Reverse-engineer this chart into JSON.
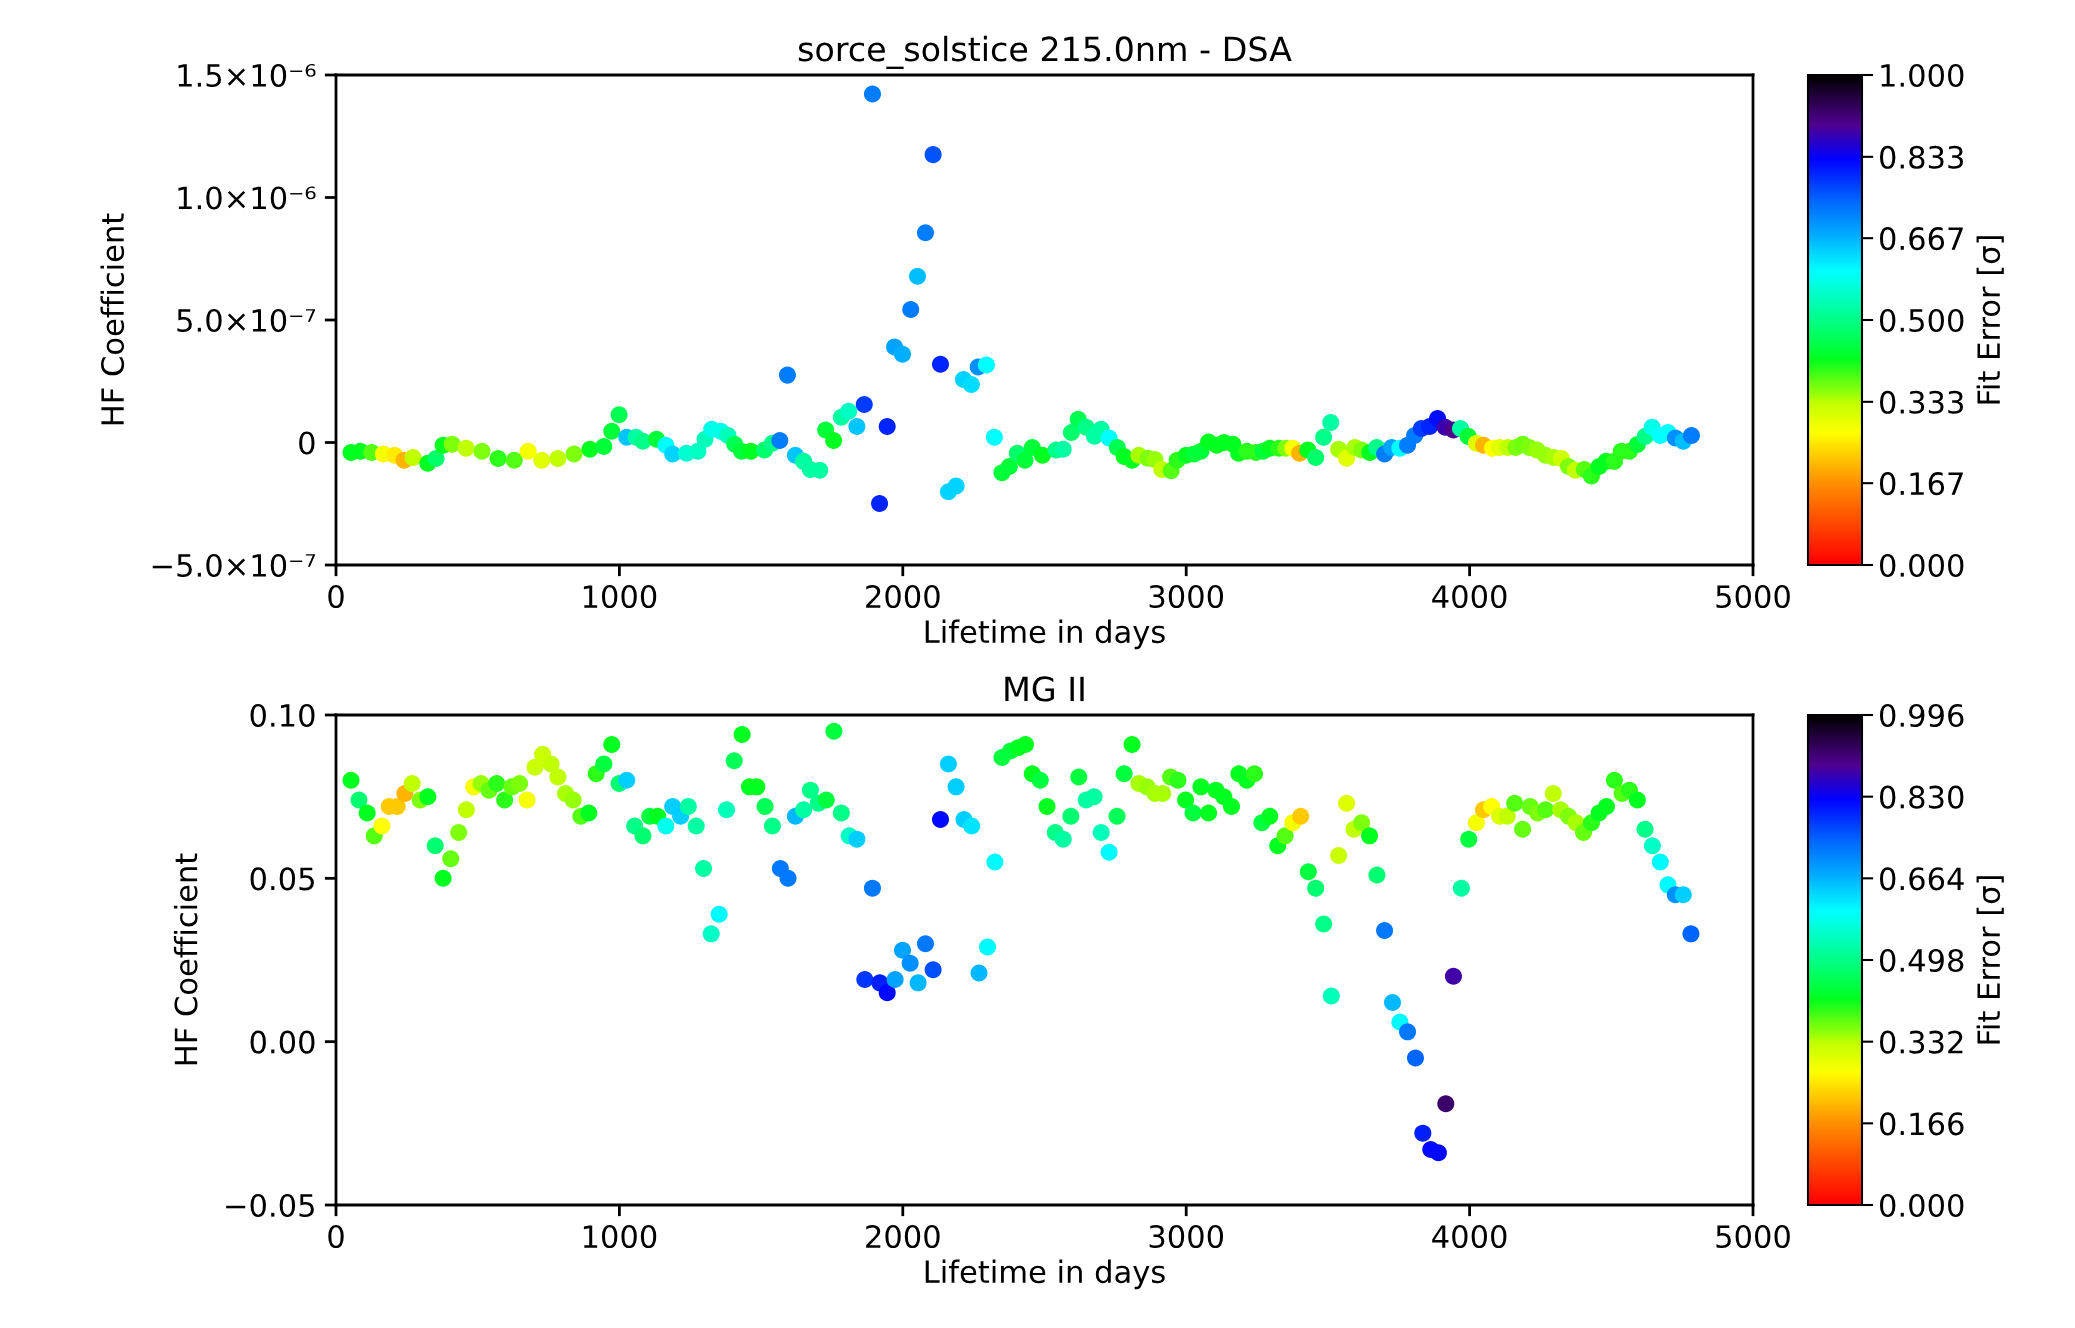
{
  "chart_data": [
    {
      "type": "scatter",
      "title": "sorce_solstice 215.0nm - DSA",
      "xlabel": "Lifetime in days",
      "ylabel": "HF Coefficient",
      "clabel": "Fit Error [σ]",
      "marker": "circle",
      "xlim": [
        0,
        5000
      ],
      "xticks": [
        0,
        1000,
        2000,
        3000,
        4000,
        5000
      ],
      "ylim": [
        -5e-07,
        1.5e-06
      ],
      "yticks": [
        {
          "value": -5e-07,
          "label": "−5.0×10⁻⁷"
        },
        0,
        {
          "value": 5e-07,
          "label": "5.0×10⁻⁷"
        },
        {
          "value": 1e-06,
          "label": "1.0×10⁻⁶"
        },
        {
          "value": 1.5e-06,
          "label": "1.5×10⁻⁶"
        }
      ],
      "clim": [
        0,
        1
      ],
      "cticks": [
        {
          "value": 0,
          "label": "0.000"
        },
        {
          "value": 0.167,
          "label": "0.167"
        },
        {
          "value": 0.333,
          "label": "0.333"
        },
        {
          "value": 0.5,
          "label": "0.500"
        },
        {
          "value": 0.667,
          "label": "0.667"
        },
        {
          "value": 0.833,
          "label": "0.833"
        },
        {
          "value": 1,
          "label": "1.000"
        }
      ],
      "x": [
        53,
        86,
        126,
        167,
        207,
        240,
        272,
        324,
        353,
        378,
        410,
        459,
        515,
        572,
        629,
        678,
        726,
        783,
        840,
        896,
        945,
        973,
        999,
        1026,
        1059,
        1083,
        1131,
        1164,
        1188,
        1237,
        1277,
        1302,
        1326,
        1358,
        1383,
        1407,
        1431,
        1464,
        1512,
        1540,
        1566,
        1593,
        1621,
        1650,
        1674,
        1707,
        1728,
        1756,
        1783,
        1809,
        1838,
        1864,
        1893,
        1918,
        1945,
        1971,
        1999,
        2028,
        2052,
        2080,
        2107,
        2133,
        2161,
        2188,
        2214,
        2242,
        2266,
        2295,
        2323,
        2350,
        2376,
        2404,
        2431,
        2457,
        2493,
        2541,
        2566,
        2595,
        2619,
        2647,
        2676,
        2700,
        2728,
        2757,
        2781,
        2809,
        2833,
        2865,
        2890,
        2914,
        2947,
        2968,
        3000,
        3028,
        3052,
        3079,
        3108,
        3133,
        3165,
        3185,
        3214,
        3246,
        3271,
        3295,
        3327,
        3352,
        3376,
        3400,
        3429,
        3457,
        3485,
        3510,
        3538,
        3566,
        3595,
        3619,
        3648,
        3672,
        3700,
        3725,
        3754,
        3781,
        3806,
        3830,
        3859,
        3887,
        3914,
        3943,
        3968,
        3995,
        4024,
        4049,
        4081,
        4106,
        4135,
        4163,
        4187,
        4211,
        4238,
        4268,
        4297,
        4324,
        4349,
        4373,
        4405,
        4430,
        4457,
        4482,
        4511,
        4535,
        4564,
        4592,
        4620,
        4644,
        4673,
        4700,
        4726,
        4754,
        4783
      ],
      "values": [
        -4.1e-08,
        -3.6e-08,
        -4.1e-08,
        -4.7e-08,
        -5.2e-08,
        -7.2e-08,
        -6.1e-08,
        -8.5e-08,
        -6.5e-08,
        -1.1e-08,
        -7e-09,
        -2.3e-08,
        -3.6e-08,
        -6.5e-08,
        -7.2e-08,
        -3.6e-08,
        -7.2e-08,
        -6.5e-08,
        -4.7e-08,
        -2.8e-08,
        -1.6e-08,
        4.6e-08,
        1.13e-07,
        2.1e-08,
        2.1e-08,
        5e-09,
        1.3e-08,
        -1.1e-08,
        -4.7e-08,
        -4.4e-08,
        -3.6e-08,
        1.3e-08,
        5.4e-08,
        4.6e-08,
        2.9e-08,
        -7e-09,
        -3.6e-08,
        -3.6e-08,
        -3.1e-08,
        -3e-09,
        8e-09,
        2.75e-07,
        -5.2e-08,
        -7.7e-08,
        -1.1e-07,
        -1.13e-07,
        5.1e-08,
        8e-09,
        1.03e-07,
        1.28e-07,
        6.5e-08,
        1.55e-07,
        1.422e-06,
        -2.49e-07,
        6.5e-08,
        3.9e-07,
        3.6e-07,
        5.43e-07,
        6.79e-07,
        8.56e-07,
        1.175e-06,
        3.19e-07,
        -2.01e-07,
        -1.78e-07,
        2.57e-07,
        2.37e-07,
        3.08e-07,
        3.16e-07,
        2.1e-08,
        -1.23e-07,
        -9.8e-08,
        -4.4e-08,
        -7.2e-08,
        -2e-08,
        -5.2e-08,
        -3.1e-08,
        -2.8e-08,
        4.1e-08,
        9.5e-08,
        6.2e-08,
        2.6e-08,
        5.4e-08,
        1.8e-08,
        -2e-08,
        -5.7e-08,
        -7.2e-08,
        -5.2e-08,
        -6.4e-08,
        -6.9e-08,
        -1.1e-07,
        -1.15e-07,
        -7.2e-08,
        -5.2e-08,
        -4.7e-08,
        -3.6e-08,
        2e-09,
        -1.1e-08,
        0.0,
        -7e-09,
        -4.4e-08,
        -3.6e-08,
        -4.1e-08,
        -3.6e-08,
        -2.3e-08,
        -2.3e-08,
        -2.3e-08,
        -2.3e-08,
        -4.4e-08,
        -3.1e-08,
        -6.1e-08,
        2.1e-08,
        8.2e-08,
        -2.8e-08,
        -6.4e-08,
        -2e-08,
        -3.1e-08,
        -4.1e-08,
        -2e-08,
        -4.7e-08,
        -2e-08,
        -2.3e-08,
        -1.1e-08,
        2.9e-08,
        5.7e-08,
        6.5e-08,
        9.8e-08,
        6.2e-08,
        5.1e-08,
        5.7e-08,
        2.5e-08,
        -3e-09,
        -1.1e-08,
        -2.3e-08,
        -2e-08,
        -2e-08,
        -2e-08,
        -7e-09,
        -2e-08,
        -3.1e-08,
        -5.2e-08,
        -6.1e-08,
        -6.5e-08,
        -9.8e-08,
        -1.13e-07,
        -1.1e-07,
        -1.37e-07,
        -9.8e-08,
        -7.7e-08,
        -7.7e-08,
        -3.6e-08,
        -3.6e-08,
        -8e-09,
        2.5e-08,
        6.2e-08,
        2.9e-08,
        4.1e-08,
        1.8e-08,
        5e-09,
        2.9e-08
      ],
      "cvalues": [
        0.42,
        0.42,
        0.38,
        0.28,
        0.25,
        0.2,
        0.33,
        0.42,
        0.48,
        0.42,
        0.36,
        0.33,
        0.36,
        0.4,
        0.38,
        0.28,
        0.3,
        0.33,
        0.36,
        0.42,
        0.44,
        0.44,
        0.46,
        0.65,
        0.52,
        0.5,
        0.44,
        0.6,
        0.64,
        0.56,
        0.55,
        0.54,
        0.58,
        0.58,
        0.54,
        0.46,
        0.44,
        0.42,
        0.48,
        0.5,
        0.72,
        0.72,
        0.65,
        0.52,
        0.52,
        0.52,
        0.44,
        0.42,
        0.52,
        0.55,
        0.65,
        0.78,
        0.72,
        0.8,
        0.8,
        0.68,
        0.67,
        0.72,
        0.66,
        0.72,
        0.76,
        0.8,
        0.64,
        0.64,
        0.64,
        0.63,
        0.7,
        0.6,
        0.6,
        0.44,
        0.44,
        0.48,
        0.44,
        0.44,
        0.42,
        0.5,
        0.52,
        0.48,
        0.46,
        0.5,
        0.52,
        0.52,
        0.6,
        0.46,
        0.42,
        0.42,
        0.34,
        0.36,
        0.35,
        0.33,
        0.38,
        0.4,
        0.42,
        0.44,
        0.44,
        0.42,
        0.42,
        0.42,
        0.42,
        0.42,
        0.4,
        0.4,
        0.44,
        0.42,
        0.4,
        0.36,
        0.28,
        0.2,
        0.42,
        0.48,
        0.5,
        0.52,
        0.34,
        0.3,
        0.34,
        0.36,
        0.42,
        0.5,
        0.72,
        0.68,
        0.6,
        0.72,
        0.72,
        0.78,
        0.8,
        0.82,
        0.88,
        0.9,
        0.52,
        0.44,
        0.3,
        0.2,
        0.27,
        0.3,
        0.33,
        0.36,
        0.37,
        0.36,
        0.35,
        0.35,
        0.34,
        0.32,
        0.36,
        0.33,
        0.38,
        0.4,
        0.42,
        0.42,
        0.4,
        0.4,
        0.4,
        0.44,
        0.5,
        0.58,
        0.6,
        0.6,
        0.7,
        0.66,
        0.72
      ]
    },
    {
      "type": "scatter",
      "title": "MG II",
      "xlabel": "Lifetime in days",
      "ylabel": "HF Coefficient",
      "clabel": "Fit Error [σ]",
      "marker": "circle",
      "xlim": [
        0,
        5000
      ],
      "xticks": [
        0,
        1000,
        2000,
        3000,
        4000,
        5000
      ],
      "ylim": [
        -0.05,
        0.1
      ],
      "yticks": [
        {
          "value": -0.05,
          "label": "−0.05"
        },
        {
          "value": 0,
          "label": "0.00"
        },
        0.05,
        {
          "value": 0.1,
          "label": "0.10"
        }
      ],
      "clim": [
        0,
        0.996
      ],
      "cticks": [
        {
          "value": 0,
          "label": "0.000"
        },
        {
          "value": 0.166,
          "label": "0.166"
        },
        {
          "value": 0.332,
          "label": "0.332"
        },
        {
          "value": 0.498,
          "label": "0.498"
        },
        {
          "value": 0.664,
          "label": "0.664"
        },
        {
          "value": 0.83,
          "label": "0.830"
        },
        {
          "value": 0.996,
          "label": "0.996"
        }
      ],
      "x": [
        53,
        81,
        110,
        135,
        162,
        188,
        216,
        243,
        269,
        297,
        324,
        350,
        378,
        405,
        433,
        460,
        486,
        512,
        540,
        567,
        595,
        621,
        648,
        674,
        702,
        729,
        759,
        783,
        810,
        837,
        864,
        892,
        918,
        945,
        973,
        999,
        1026,
        1054,
        1083,
        1107,
        1135,
        1164,
        1188,
        1216,
        1243,
        1271,
        1297,
        1324,
        1352,
        1378,
        1405,
        1433,
        1459,
        1485,
        1514,
        1540,
        1568,
        1595,
        1621,
        1650,
        1674,
        1702,
        1730,
        1757,
        1783,
        1811,
        1838,
        1866,
        1893,
        1919,
        1945,
        1973,
        1999,
        2026,
        2054,
        2080,
        2107,
        2133,
        2161,
        2188,
        2216,
        2243,
        2269,
        2299,
        2325,
        2350,
        2380,
        2407,
        2433,
        2457,
        2485,
        2509,
        2538,
        2566,
        2593,
        2621,
        2647,
        2675,
        2700,
        2728,
        2756,
        2781,
        2809,
        2833,
        2862,
        2890,
        2917,
        2945,
        2971,
        2998,
        3024,
        3052,
        3079,
        3105,
        3133,
        3160,
        3186,
        3214,
        3241,
        3267,
        3295,
        3323,
        3349,
        3376,
        3404,
        3431,
        3457,
        3485,
        3512,
        3538,
        3566,
        3592,
        3619,
        3647,
        3673,
        3700,
        3728,
        3754,
        3781,
        3809,
        3835,
        3863,
        3890,
        3916,
        3943,
        3971,
        3997,
        4024,
        4049,
        4078,
        4106,
        4133,
        4159,
        4187,
        4214,
        4240,
        4268,
        4295,
        4321,
        4349,
        4376,
        4402,
        4430,
        4457,
        4483,
        4511,
        4538,
        4564,
        4592,
        4619,
        4645,
        4673,
        4700,
        4726,
        4754,
        4781
      ],
      "values": [
        0.08,
        0.074,
        0.07,
        0.063,
        0.066,
        0.072,
        0.072,
        0.076,
        0.079,
        0.074,
        0.075,
        0.06,
        0.05,
        0.056,
        0.064,
        0.071,
        0.078,
        0.079,
        0.077,
        0.079,
        0.074,
        0.078,
        0.079,
        0.074,
        0.084,
        0.088,
        0.085,
        0.081,
        0.076,
        0.074,
        0.069,
        0.07,
        0.082,
        0.085,
        0.091,
        0.079,
        0.08,
        0.066,
        0.063,
        0.069,
        0.069,
        0.066,
        0.072,
        0.069,
        0.072,
        0.066,
        0.053,
        0.033,
        0.039,
        0.071,
        0.086,
        0.094,
        0.078,
        0.078,
        0.072,
        0.066,
        0.053,
        0.05,
        0.069,
        0.071,
        0.077,
        0.073,
        0.074,
        0.095,
        0.07,
        0.063,
        0.062,
        0.019,
        0.047,
        0.018,
        0.015,
        0.019,
        0.028,
        0.024,
        0.018,
        0.03,
        0.022,
        0.068,
        0.085,
        0.078,
        0.068,
        0.066,
        0.021,
        0.029,
        0.055,
        0.087,
        0.089,
        0.09,
        0.091,
        0.082,
        0.08,
        0.072,
        0.064,
        0.062,
        0.069,
        0.081,
        0.074,
        0.075,
        0.064,
        0.058,
        0.069,
        0.082,
        0.091,
        0.079,
        0.078,
        0.076,
        0.076,
        0.081,
        0.08,
        0.074,
        0.07,
        0.078,
        0.07,
        0.077,
        0.075,
        0.072,
        0.082,
        0.08,
        0.082,
        0.067,
        0.069,
        0.06,
        0.063,
        0.067,
        0.069,
        0.052,
        0.047,
        0.036,
        0.014,
        0.057,
        0.073,
        0.065,
        0.067,
        0.063,
        0.051,
        0.034,
        0.012,
        0.006,
        0.003,
        -0.005,
        -0.028,
        -0.033,
        -0.034,
        -0.019,
        0.02,
        0.047,
        0.062,
        0.067,
        0.071,
        0.072,
        0.069,
        0.069,
        0.073,
        0.065,
        0.072,
        0.07,
        0.071,
        0.076,
        0.071,
        0.069,
        0.067,
        0.064,
        0.067,
        0.07,
        0.072,
        0.08,
        0.076,
        0.077,
        0.074,
        0.065,
        0.06,
        0.055,
        0.048,
        0.045,
        0.045,
        0.033
      ],
      "cvalues": [
        0.42,
        0.48,
        0.42,
        0.38,
        0.27,
        0.22,
        0.22,
        0.2,
        0.33,
        0.36,
        0.42,
        0.48,
        0.42,
        0.37,
        0.36,
        0.33,
        0.28,
        0.35,
        0.37,
        0.4,
        0.4,
        0.37,
        0.36,
        0.28,
        0.32,
        0.32,
        0.33,
        0.33,
        0.34,
        0.35,
        0.38,
        0.42,
        0.4,
        0.44,
        0.42,
        0.48,
        0.64,
        0.5,
        0.48,
        0.44,
        0.42,
        0.58,
        0.64,
        0.64,
        0.52,
        0.52,
        0.52,
        0.55,
        0.6,
        0.54,
        0.46,
        0.42,
        0.42,
        0.42,
        0.46,
        0.5,
        0.72,
        0.72,
        0.66,
        0.52,
        0.5,
        0.5,
        0.44,
        0.44,
        0.5,
        0.55,
        0.64,
        0.78,
        0.72,
        0.8,
        0.82,
        0.68,
        0.68,
        0.7,
        0.66,
        0.72,
        0.76,
        0.82,
        0.64,
        0.64,
        0.64,
        0.62,
        0.66,
        0.6,
        0.6,
        0.44,
        0.44,
        0.42,
        0.42,
        0.42,
        0.44,
        0.42,
        0.5,
        0.52,
        0.48,
        0.44,
        0.52,
        0.52,
        0.54,
        0.6,
        0.46,
        0.44,
        0.42,
        0.34,
        0.35,
        0.34,
        0.34,
        0.38,
        0.4,
        0.42,
        0.44,
        0.42,
        0.42,
        0.42,
        0.42,
        0.42,
        0.42,
        0.42,
        0.4,
        0.44,
        0.42,
        0.42,
        0.38,
        0.28,
        0.22,
        0.44,
        0.48,
        0.5,
        0.54,
        0.32,
        0.3,
        0.33,
        0.36,
        0.42,
        0.48,
        0.72,
        0.66,
        0.6,
        0.72,
        0.74,
        0.8,
        0.82,
        0.82,
        0.92,
        0.88,
        0.52,
        0.44,
        0.28,
        0.22,
        0.27,
        0.3,
        0.33,
        0.38,
        0.37,
        0.37,
        0.36,
        0.38,
        0.33,
        0.34,
        0.36,
        0.34,
        0.37,
        0.4,
        0.42,
        0.42,
        0.4,
        0.38,
        0.4,
        0.42,
        0.5,
        0.55,
        0.6,
        0.6,
        0.7,
        0.64,
        0.74
      ]
    }
  ]
}
